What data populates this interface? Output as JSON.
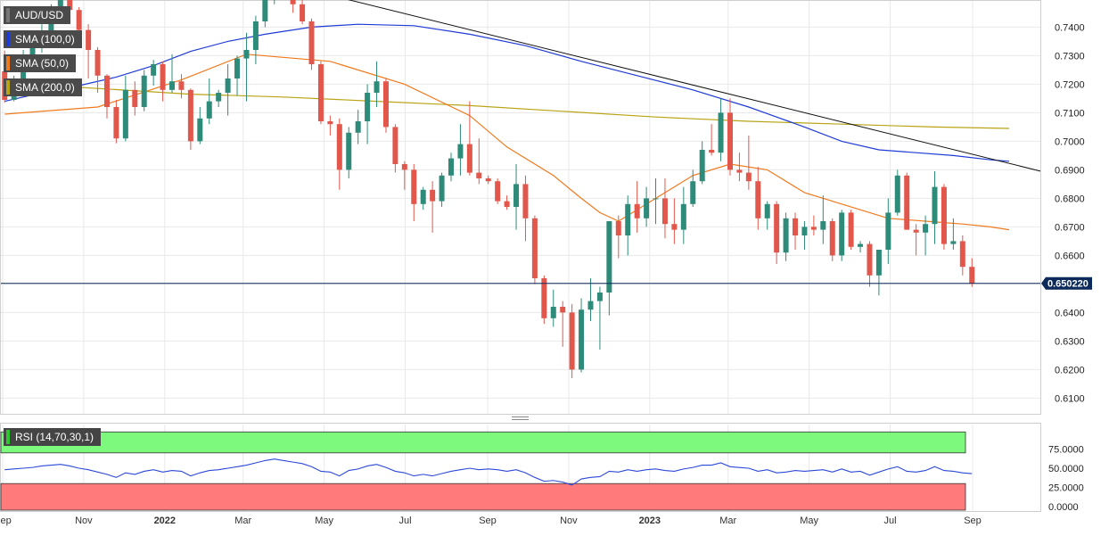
{
  "chart_data": {
    "type": "candlestick",
    "symbol": "AUD/USD",
    "price_axis": {
      "ticks": [
        "0.7400",
        "0.7300",
        "0.7200",
        "0.7100",
        "0.7000",
        "0.6900",
        "0.6800",
        "0.6700",
        "0.6600",
        "0.6500",
        "0.6400",
        "0.6300",
        "0.6200",
        "0.6100"
      ],
      "ylim": [
        0.6045,
        0.7495
      ]
    },
    "current_price": "0.650220",
    "x_axis": {
      "labels": [
        "Sep",
        "Nov",
        "2022",
        "Mar",
        "May",
        "Jul",
        "Sep",
        "Nov",
        "2023",
        "Mar",
        "May",
        "Jul",
        "Sep"
      ],
      "bold_labels": [
        "2022",
        "2023"
      ],
      "label_dates": [
        "2021-09-01",
        "2021-11-01",
        "2022-01-01",
        "2022-03-01",
        "2022-05-01",
        "2022-07-01",
        "2022-09-01",
        "2022-11-01",
        "2023-01-01",
        "2023-03-01",
        "2023-05-01",
        "2023-07-01",
        "2023-09-01"
      ],
      "range": [
        "2021-08-30",
        "2023-10-22"
      ]
    },
    "candle_interval": "weekly",
    "candle_dates_start": "2021-08-30",
    "candles": [
      [
        0.7245,
        0.7318,
        0.7135,
        0.7145
      ],
      [
        0.7145,
        0.723,
        0.714,
        0.7215
      ],
      [
        0.7215,
        0.732,
        0.719,
        0.729
      ],
      [
        0.729,
        0.736,
        0.7265,
        0.7345
      ],
      [
        0.7345,
        0.741,
        0.731,
        0.738
      ],
      [
        0.738,
        0.748,
        0.7355,
        0.745
      ],
      [
        0.745,
        0.7546,
        0.742,
        0.752
      ],
      [
        0.752,
        0.7555,
        0.744,
        0.746
      ],
      [
        0.746,
        0.747,
        0.733,
        0.739
      ],
      [
        0.739,
        0.741,
        0.722,
        0.732
      ],
      [
        0.732,
        0.733,
        0.717,
        0.723
      ],
      [
        0.723,
        0.7235,
        0.708,
        0.712
      ],
      [
        0.712,
        0.7145,
        0.6993,
        0.701
      ],
      [
        0.701,
        0.723,
        0.7,
        0.718
      ],
      [
        0.718,
        0.721,
        0.709,
        0.712
      ],
      [
        0.712,
        0.725,
        0.7105,
        0.723
      ],
      [
        0.723,
        0.7285,
        0.7195,
        0.727
      ],
      [
        0.727,
        0.728,
        0.714,
        0.718
      ],
      [
        0.718,
        0.7305,
        0.717,
        0.721
      ],
      [
        0.721,
        0.7235,
        0.715,
        0.718
      ],
      [
        0.718,
        0.7185,
        0.697,
        0.7
      ],
      [
        0.7,
        0.712,
        0.699,
        0.708
      ],
      [
        0.708,
        0.722,
        0.706,
        0.714
      ],
      [
        0.714,
        0.718,
        0.712,
        0.717
      ],
      [
        0.717,
        0.727,
        0.709,
        0.722
      ],
      [
        0.722,
        0.73,
        0.716,
        0.729
      ],
      [
        0.729,
        0.738,
        0.714,
        0.732
      ],
      [
        0.732,
        0.744,
        0.727,
        0.742
      ],
      [
        0.742,
        0.7535,
        0.74,
        0.7505
      ],
      [
        0.7505,
        0.766,
        0.748,
        0.762
      ],
      [
        0.762,
        0.766,
        0.75,
        0.752
      ],
      [
        0.752,
        0.756,
        0.745,
        0.748
      ],
      [
        0.748,
        0.75,
        0.741,
        0.742
      ],
      [
        0.742,
        0.743,
        0.725,
        0.727
      ],
      [
        0.727,
        0.728,
        0.706,
        0.707
      ],
      [
        0.707,
        0.709,
        0.702,
        0.706
      ],
      [
        0.706,
        0.708,
        0.683,
        0.69
      ],
      [
        0.69,
        0.705,
        0.687,
        0.703
      ],
      [
        0.703,
        0.711,
        0.699,
        0.707
      ],
      [
        0.707,
        0.72,
        0.699,
        0.717
      ],
      [
        0.717,
        0.728,
        0.712,
        0.721
      ],
      [
        0.721,
        0.722,
        0.703,
        0.705
      ],
      [
        0.705,
        0.706,
        0.689,
        0.692
      ],
      [
        0.692,
        0.693,
        0.683,
        0.69
      ],
      [
        0.69,
        0.692,
        0.672,
        0.678
      ],
      [
        0.678,
        0.684,
        0.676,
        0.683
      ],
      [
        0.683,
        0.686,
        0.668,
        0.679
      ],
      [
        0.679,
        0.689,
        0.677,
        0.688
      ],
      [
        0.688,
        0.696,
        0.686,
        0.694
      ],
      [
        0.694,
        0.706,
        0.688,
        0.699
      ],
      [
        0.699,
        0.714,
        0.688,
        0.689
      ],
      [
        0.689,
        0.701,
        0.685,
        0.687
      ],
      [
        0.687,
        0.688,
        0.685,
        0.686
      ],
      [
        0.686,
        0.687,
        0.678,
        0.679
      ],
      [
        0.679,
        0.681,
        0.676,
        0.677
      ],
      [
        0.677,
        0.692,
        0.669,
        0.685
      ],
      [
        0.685,
        0.688,
        0.665,
        0.673
      ],
      [
        0.673,
        0.674,
        0.65,
        0.652
      ],
      [
        0.652,
        0.653,
        0.636,
        0.638
      ],
      [
        0.638,
        0.648,
        0.635,
        0.642
      ],
      [
        0.642,
        0.644,
        0.628,
        0.64
      ],
      [
        0.64,
        0.643,
        0.617,
        0.62
      ],
      [
        0.62,
        0.645,
        0.619,
        0.641
      ],
      [
        0.641,
        0.652,
        0.637,
        0.644
      ],
      [
        0.644,
        0.649,
        0.627,
        0.647
      ],
      [
        0.647,
        0.672,
        0.639,
        0.672
      ],
      [
        0.672,
        0.674,
        0.659,
        0.667
      ],
      [
        0.667,
        0.681,
        0.66,
        0.678
      ],
      [
        0.678,
        0.686,
        0.668,
        0.673
      ],
      [
        0.673,
        0.684,
        0.67,
        0.68
      ],
      [
        0.68,
        0.687,
        0.671,
        0.68
      ],
      [
        0.68,
        0.687,
        0.666,
        0.671
      ],
      [
        0.671,
        0.68,
        0.664,
        0.669
      ],
      [
        0.669,
        0.684,
        0.664,
        0.678
      ],
      [
        0.678,
        0.69,
        0.677,
        0.686
      ],
      [
        0.686,
        0.7,
        0.685,
        0.697
      ],
      [
        0.697,
        0.706,
        0.695,
        0.696
      ],
      [
        0.696,
        0.715,
        0.693,
        0.71
      ],
      [
        0.71,
        0.715,
        0.688,
        0.69
      ],
      [
        0.69,
        0.696,
        0.686,
        0.689
      ],
      [
        0.689,
        0.702,
        0.683,
        0.686
      ],
      [
        0.686,
        0.691,
        0.669,
        0.673
      ],
      [
        0.673,
        0.679,
        0.669,
        0.678
      ],
      [
        0.678,
        0.679,
        0.657,
        0.661
      ],
      [
        0.661,
        0.675,
        0.658,
        0.673
      ],
      [
        0.673,
        0.675,
        0.662,
        0.667
      ],
      [
        0.667,
        0.672,
        0.662,
        0.67
      ],
      [
        0.67,
        0.674,
        0.667,
        0.669
      ],
      [
        0.669,
        0.681,
        0.664,
        0.672
      ],
      [
        0.672,
        0.673,
        0.658,
        0.66
      ],
      [
        0.66,
        0.676,
        0.658,
        0.675
      ],
      [
        0.675,
        0.676,
        0.662,
        0.663
      ],
      [
        0.663,
        0.665,
        0.661,
        0.664
      ],
      [
        0.664,
        0.665,
        0.649,
        0.653
      ],
      [
        0.653,
        0.662,
        0.646,
        0.662
      ],
      [
        0.662,
        0.68,
        0.657,
        0.675
      ],
      [
        0.675,
        0.69,
        0.674,
        0.688
      ],
      [
        0.688,
        0.689,
        0.669,
        0.669
      ],
      [
        0.669,
        0.671,
        0.66,
        0.668
      ],
      [
        0.668,
        0.674,
        0.66,
        0.671
      ],
      [
        0.671,
        0.6895,
        0.664,
        0.684
      ],
      [
        0.684,
        0.685,
        0.662,
        0.664
      ],
      [
        0.664,
        0.673,
        0.662,
        0.665
      ],
      [
        0.665,
        0.667,
        0.653,
        0.656
      ],
      [
        0.656,
        0.659,
        0.649,
        0.6502
      ]
    ],
    "sma_50": [
      [
        0,
        0.7095
      ],
      [
        10,
        0.712
      ],
      [
        19,
        0.7215
      ],
      [
        26,
        0.7305
      ],
      [
        35,
        0.728
      ],
      [
        43,
        0.72
      ],
      [
        50,
        0.709
      ],
      [
        54,
        0.698
      ],
      [
        59,
        0.688
      ],
      [
        62,
        0.68
      ],
      [
        64,
        0.675
      ],
      [
        66,
        0.672
      ],
      [
        70,
        0.68
      ],
      [
        74,
        0.688
      ],
      [
        78,
        0.692
      ],
      [
        82,
        0.69
      ],
      [
        86,
        0.682
      ],
      [
        90,
        0.678
      ],
      [
        95,
        0.673
      ],
      [
        99,
        0.672
      ],
      [
        103,
        0.671
      ],
      [
        106,
        0.67
      ],
      [
        108,
        0.669
      ]
    ],
    "sma_100": [
      [
        0,
        0.714
      ],
      [
        4,
        0.717
      ],
      [
        8,
        0.7195
      ],
      [
        12,
        0.7225
      ],
      [
        16,
        0.7265
      ],
      [
        20,
        0.7315
      ],
      [
        24,
        0.735
      ],
      [
        28,
        0.7375
      ],
      [
        33,
        0.74
      ],
      [
        38,
        0.741
      ],
      [
        44,
        0.7405
      ],
      [
        50,
        0.7375
      ],
      [
        56,
        0.7335
      ],
      [
        62,
        0.728
      ],
      [
        68,
        0.723
      ],
      [
        74,
        0.718
      ],
      [
        80,
        0.712
      ],
      [
        86,
        0.705
      ],
      [
        90,
        0.7
      ],
      [
        94,
        0.697
      ],
      [
        98,
        0.696
      ],
      [
        102,
        0.695
      ],
      [
        106,
        0.6935
      ],
      [
        108,
        0.693
      ]
    ],
    "sma_200": [
      [
        0,
        0.7205
      ],
      [
        10,
        0.7185
      ],
      [
        20,
        0.7165
      ],
      [
        30,
        0.7155
      ],
      [
        40,
        0.714
      ],
      [
        50,
        0.7125
      ],
      [
        60,
        0.7105
      ],
      [
        70,
        0.7085
      ],
      [
        80,
        0.707
      ],
      [
        90,
        0.706
      ],
      [
        100,
        0.705
      ],
      [
        108,
        0.7045
      ]
    ],
    "trendline": {
      "from": [
        34,
        0.752
      ],
      "to": [
        115,
        0.6866
      ]
    },
    "rsi": {
      "label": "RSI (14,70,30,1)",
      "ticks": [
        "75.0000",
        "50.0000",
        "25.0000",
        "0.0000"
      ],
      "ylim": [
        0,
        100
      ],
      "overbought": 70,
      "oversold": 30,
      "values": [
        48,
        49,
        50,
        51,
        53,
        54,
        55,
        53,
        50,
        48,
        45,
        42,
        38,
        44,
        42,
        46,
        48,
        45,
        47,
        46,
        40,
        44,
        47,
        48,
        50,
        52,
        54,
        57,
        60,
        62,
        60,
        58,
        56,
        52,
        46,
        45,
        40,
        47,
        49,
        53,
        55,
        51,
        46,
        44,
        40,
        42,
        40,
        43,
        46,
        48,
        50,
        48,
        49,
        48,
        46,
        48,
        44,
        38,
        33,
        34,
        32,
        28,
        36,
        38,
        39,
        46,
        45,
        48,
        46,
        48,
        49,
        47,
        46,
        49,
        51,
        54,
        54,
        57,
        52,
        51,
        50,
        46,
        48,
        44,
        45,
        47,
        46,
        47,
        48,
        45,
        49,
        45,
        46,
        41,
        45,
        49,
        52,
        46,
        45,
        47,
        52,
        47,
        46,
        44,
        43
      ]
    },
    "indicators": [
      {
        "name": "SMA (100,0)",
        "color": "#1f3bd6"
      },
      {
        "name": "SMA (50,0)",
        "color": "#f07a1e"
      },
      {
        "name": "SMA (200,0)",
        "color": "#b8a416"
      }
    ],
    "colors": {
      "bull": "#2e8b7a",
      "bear": "#e2574c",
      "price_tag": "#0c2a5a",
      "rsi_line": "#2b49d8",
      "overbought_fill": "#7dfa7d",
      "oversold_fill": "#ff7b7b",
      "trendline": "#111111",
      "grid": "#e8e8e8"
    }
  }
}
